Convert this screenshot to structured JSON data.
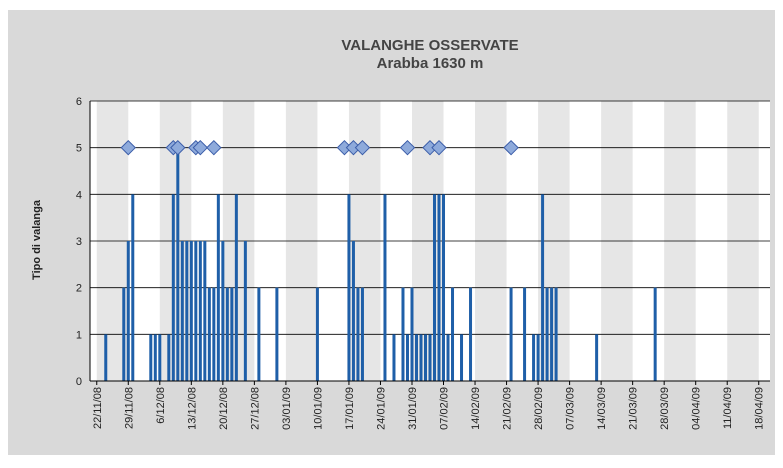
{
  "chart_data": {
    "type": "bar",
    "title": "VALANGHE OSSERVATE",
    "subtitle": "Arabba 1630 m",
    "y_label": "Tipo di valanga",
    "xlim": [
      -1.5,
      149.5
    ],
    "xticks": [
      {
        "value": 0,
        "label": "22/11/08"
      },
      {
        "value": 7,
        "label": "29/11/08"
      },
      {
        "value": 14,
        "label": "6/12/08"
      },
      {
        "value": 21,
        "label": "13/12/08"
      },
      {
        "value": 28,
        "label": "20/12/08"
      },
      {
        "value": 35,
        "label": "27/12/08"
      },
      {
        "value": 42,
        "label": "03/01/09"
      },
      {
        "value": 49,
        "label": "10/01/09"
      },
      {
        "value": 56,
        "label": "17/01/09"
      },
      {
        "value": 63,
        "label": "24/01/09"
      },
      {
        "value": 70,
        "label": "31/01/09"
      },
      {
        "value": 77,
        "label": "07/02/09"
      },
      {
        "value": 84,
        "label": "14/02/09"
      },
      {
        "value": 91,
        "label": "21/02/09"
      },
      {
        "value": 98,
        "label": "28/02/09"
      },
      {
        "value": 105,
        "label": "07/03/09"
      },
      {
        "value": 112,
        "label": "14/03/09"
      },
      {
        "value": 119,
        "label": "21/03/09"
      },
      {
        "value": 126,
        "label": "28/03/09"
      },
      {
        "value": 133,
        "label": "04/04/09"
      },
      {
        "value": 140,
        "label": "11/04/09"
      },
      {
        "value": 147,
        "label": "18/04/09"
      }
    ],
    "ylim": [
      0,
      6
    ],
    "yticks": [
      0,
      1,
      2,
      3,
      4,
      5,
      6
    ],
    "grid": true,
    "series": [
      {
        "kind": "bar",
        "color": "#1f5fa8",
        "x": [
          2,
          6,
          7,
          8,
          12,
          13,
          14,
          16,
          17,
          18,
          19,
          20,
          21,
          22,
          23,
          24,
          25,
          26,
          27,
          28,
          29,
          30,
          31,
          33,
          36,
          40,
          49,
          56,
          57,
          58,
          59,
          64,
          66,
          68,
          69,
          70,
          71,
          72,
          73,
          74,
          75,
          76,
          77,
          78,
          79,
          81,
          83,
          92,
          95,
          97,
          98,
          99,
          100,
          101,
          102,
          111,
          124
        ],
        "values": [
          1,
          2,
          3,
          4,
          1,
          1,
          1,
          1,
          4,
          5,
          3,
          3,
          3,
          3,
          3,
          3,
          2,
          2,
          4,
          3,
          2,
          2,
          4,
          3,
          2,
          2,
          2,
          4,
          3,
          2,
          2,
          4,
          1,
          2,
          1,
          2,
          1,
          1,
          1,
          1,
          4,
          4,
          4,
          1,
          2,
          1,
          2,
          2,
          2,
          1,
          1,
          4,
          2,
          2,
          2,
          1,
          2
        ]
      },
      {
        "kind": "marker",
        "color": "#8eaadb",
        "x": [
          7,
          17,
          18,
          22,
          23,
          26,
          55,
          57,
          59,
          69,
          74,
          76,
          92
        ],
        "values": [
          5,
          5,
          5,
          5,
          5,
          5,
          5,
          5,
          5,
          5,
          5,
          5,
          5
        ]
      }
    ]
  }
}
